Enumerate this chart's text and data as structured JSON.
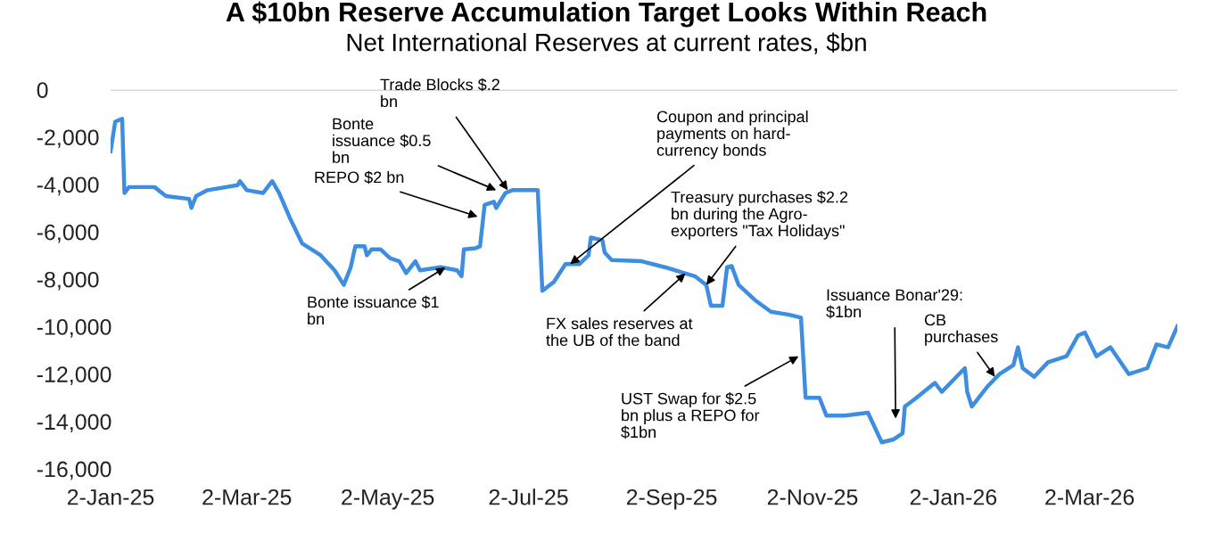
{
  "chart_data": {
    "type": "line",
    "title": "A $10bn Reserve Accumulation Target Looks Within Reach",
    "subtitle": "Net International Reserves at current rates, $bn",
    "series": [
      {
        "color": "#3d8de0",
        "x": [
          "2025-01-02",
          "2025-01-04",
          "2025-01-07",
          "2025-01-08",
          "2025-01-10",
          "2025-01-21",
          "2025-01-26",
          "2025-02-05",
          "2025-02-06",
          "2025-02-08",
          "2025-02-13",
          "2025-02-26",
          "2025-02-27",
          "2025-03-02",
          "2025-03-09",
          "2025-03-13",
          "2025-03-16",
          "2025-03-21",
          "2025-03-26",
          "2025-04-03",
          "2025-04-09",
          "2025-04-13",
          "2025-04-16",
          "2025-04-18",
          "2025-04-22",
          "2025-04-23",
          "2025-04-25",
          "2025-04-29",
          "2025-05-03",
          "2025-05-07",
          "2025-05-10",
          "2025-05-14",
          "2025-05-16",
          "2025-05-25",
          "2025-06-01",
          "2025-06-03",
          "2025-06-04",
          "2025-06-09",
          "2025-06-11",
          "2025-06-13",
          "2025-06-17",
          "2025-06-18",
          "2025-06-22",
          "2025-06-25",
          "2025-07-06",
          "2025-07-08",
          "2025-07-13",
          "2025-07-18",
          "2025-07-24",
          "2025-07-28",
          "2025-07-29",
          "2025-08-03",
          "2025-08-04",
          "2025-08-07",
          "2025-08-20",
          "2025-08-30",
          "2025-09-12",
          "2025-09-17",
          "2025-09-19",
          "2025-09-24",
          "2025-09-26",
          "2025-09-28",
          "2025-10-01",
          "2025-10-08",
          "2025-10-15",
          "2025-10-23",
          "2025-10-28",
          "2025-10-30",
          "2025-11-05",
          "2025-11-08",
          "2025-11-16",
          "2025-11-26",
          "2025-12-02",
          "2025-12-07",
          "2025-12-11",
          "2025-12-12",
          "2025-12-17",
          "2025-12-25",
          "2025-12-28",
          "2026-01-02",
          "2026-01-07",
          "2026-01-08",
          "2026-01-10",
          "2026-01-17",
          "2026-01-22",
          "2026-01-28",
          "2026-01-30",
          "2026-02-01",
          "2026-02-06",
          "2026-02-12",
          "2026-02-20",
          "2026-02-25",
          "2026-02-28",
          "2026-03-05",
          "2026-03-11",
          "2026-03-19",
          "2026-03-27",
          "2026-03-31",
          "2026-04-05",
          "2026-04-09"
        ],
        "values": [
          -2600,
          -1350,
          -1230,
          -4360,
          -4110,
          -4110,
          -4490,
          -4610,
          -4990,
          -4490,
          -4240,
          -4030,
          -3860,
          -4240,
          -4360,
          -3860,
          -4360,
          -5490,
          -6490,
          -6990,
          -7620,
          -8240,
          -7490,
          -6610,
          -6610,
          -6990,
          -6740,
          -6740,
          -7110,
          -7240,
          -7740,
          -7240,
          -7620,
          -7490,
          -7620,
          -7870,
          -6740,
          -6690,
          -6610,
          -4860,
          -4730,
          -4990,
          -4360,
          -4240,
          -4240,
          -8490,
          -8110,
          -7360,
          -7360,
          -6990,
          -6240,
          -6360,
          -6870,
          -7190,
          -7240,
          -7490,
          -7870,
          -8240,
          -9120,
          -9120,
          -7490,
          -7440,
          -8240,
          -8870,
          -9370,
          -9500,
          -9620,
          -13000,
          -13000,
          -13750,
          -13750,
          -13630,
          -14880,
          -14760,
          -14500,
          -13370,
          -13000,
          -12370,
          -12750,
          -12250,
          -11750,
          -12750,
          -13370,
          -12500,
          -12000,
          -11620,
          -10870,
          -11750,
          -12120,
          -11500,
          -11250,
          -10370,
          -10250,
          -11250,
          -10870,
          -12000,
          -11750,
          -10750,
          -10870,
          -9990
        ]
      }
    ],
    "xlim": [
      "2025-01-02",
      "2026-04-09"
    ],
    "xticks": [
      {
        "value": "2025-01-02",
        "label": "2-Jan-25"
      },
      {
        "value": "2025-03-02",
        "label": "2-Mar-25"
      },
      {
        "value": "2025-05-02",
        "label": "2-May-25"
      },
      {
        "value": "2025-07-02",
        "label": "2-Jul-25"
      },
      {
        "value": "2025-09-02",
        "label": "2-Sep-25"
      },
      {
        "value": "2025-11-02",
        "label": "2-Nov-25"
      },
      {
        "value": "2026-01-02",
        "label": "2-Jan-26"
      },
      {
        "value": "2026-03-02",
        "label": "2-Mar-26"
      }
    ],
    "ylim": [
      -16000,
      0
    ],
    "yticks": [
      {
        "value": -16000,
        "label": "-16,000"
      },
      {
        "value": -14000,
        "label": "-14,000"
      },
      {
        "value": -12000,
        "label": "-12,000"
      },
      {
        "value": -10000,
        "label": "-10,000"
      },
      {
        "value": -8000,
        "label": "-8,000"
      },
      {
        "value": -6000,
        "label": "-6,000"
      },
      {
        "value": -4000,
        "label": "-4,000"
      },
      {
        "value": -2000,
        "label": "-2,000"
      },
      0
    ],
    "ref_lines": [
      {
        "axis": "y",
        "value": 0,
        "color": "#d9d9d9"
      }
    ],
    "grid": false,
    "legend": false,
    "marker": "none",
    "line_style": "solid",
    "annotations": [
      {
        "text": "Trade Blocks $.2 bn",
        "x": "2025-06-23",
        "y": -4240
      },
      {
        "text": "Bonte issuance $0.5 bn",
        "x": "2025-06-18",
        "y": -4240
      },
      {
        "text": "REPO $2 bn",
        "x": "2025-06-10",
        "y": -5360
      },
      {
        "text": "Bonte issuance $1 bn",
        "x": "2025-05-27",
        "y": -7500
      },
      {
        "text": "FX sales reserves at the UB of the band",
        "x": "2025-09-08",
        "y": -7750
      },
      {
        "text": "Coupon and principal payments on hard-currency bonds",
        "x": "2025-07-20",
        "y": -7360
      },
      {
        "text": "Treasury purchases $2.2 bn during the Agro-exporters \"Tax Holidays\"",
        "x": "2025-09-17",
        "y": -8240
      },
      {
        "text": "UST Swap for $2.5 bn plus a REPO for $1bn",
        "x": "2025-10-27",
        "y": -11250
      },
      {
        "text": "Issuance Bonar'29: $1bn",
        "x": "2025-12-08",
        "y": -13880
      },
      {
        "text": "CB purchases",
        "x": "2026-01-20",
        "y": -12120
      }
    ]
  }
}
